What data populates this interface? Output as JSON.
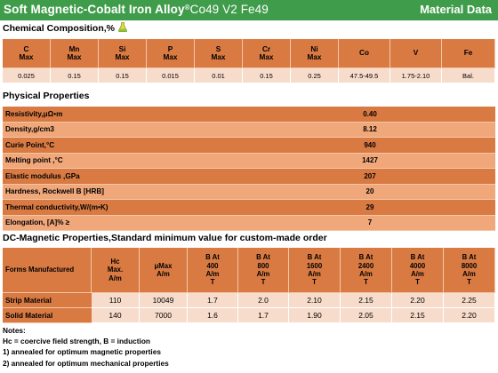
{
  "header": {
    "title": "Soft Magnetic-Cobalt Iron  Alloy",
    "registered": "®",
    "grade": "Co49 V2 Fe49",
    "right_label": "Material Data"
  },
  "chemical": {
    "title": "Chemical Composition,%",
    "columns": [
      {
        "el": "C",
        "sub": "Max",
        "value": "0.025"
      },
      {
        "el": "Mn",
        "sub": "Max",
        "value": "0.15"
      },
      {
        "el": "Si",
        "sub": "Max",
        "value": "0.15"
      },
      {
        "el": "P",
        "sub": "Max",
        "value": "0.015"
      },
      {
        "el": "S",
        "sub": "Max",
        "value": "0.01"
      },
      {
        "el": "Cr",
        "sub": "Max",
        "value": "0.15"
      },
      {
        "el": "Ni",
        "sub": "Max",
        "value": "0.25"
      },
      {
        "el": "Co",
        "sub": "",
        "value": "47.5-49.5"
      },
      {
        "el": "V",
        "sub": "",
        "value": "1.75-2.10"
      },
      {
        "el": "Fe",
        "sub": "",
        "value": "Bal."
      }
    ]
  },
  "physical": {
    "title": "Physical Properties",
    "rows": [
      {
        "label": "Resistivity,μΩ•m",
        "value": "0.40"
      },
      {
        "label": "Density,g/cm3",
        "value": "8.12"
      },
      {
        "label": "Curie Point,°C",
        "value": "940"
      },
      {
        "label": "Melting point ,°C",
        "value": "1427"
      },
      {
        "label": "Elastic modulus ,GPa",
        "value": "207"
      },
      {
        "label": "Hardness, Rockwell B [HRB]",
        "value": "20"
      },
      {
        "label": "Thermal conductivity,W/(m•K)",
        "value": "29"
      },
      {
        "label": "Elongation, [A]% ≥",
        "value": "7"
      }
    ]
  },
  "dc": {
    "title": "DC-Magnetic Properties,Standard minimum value for custom-made order",
    "forms_label": "Forms Manufactured",
    "headers": [
      [
        "Hc",
        "Max.",
        "A/m"
      ],
      [
        "μMax",
        "A/m"
      ],
      [
        "B At",
        "400",
        "A/m",
        "T"
      ],
      [
        "B At",
        "800",
        "A/m",
        "T"
      ],
      [
        "B At",
        "1600",
        "A/m",
        "T"
      ],
      [
        "B At",
        "2400",
        "A/m",
        "T"
      ],
      [
        "B At",
        "4000",
        "A/m",
        "T"
      ],
      [
        "B At",
        "8000",
        "A/m",
        "T"
      ]
    ],
    "rows": [
      {
        "label": "Strip Material",
        "values": [
          "110",
          "10049",
          "1.7",
          "2.0",
          "2.10",
          "2.15",
          "2.20",
          "2.25"
        ]
      },
      {
        "label": "Solid Material",
        "values": [
          "140",
          "7000",
          "1.6",
          "1.7",
          "1.90",
          "2.05",
          "2.15",
          "2.20"
        ]
      }
    ]
  },
  "notes": {
    "heading": "Notes:",
    "lines": [
      "Hc = coercive field strength, B = induction",
      "1) annealed for optimum magnetic properties",
      "2) annealed for optimum mechanical properties"
    ]
  },
  "colors": {
    "banner": "#3f9c4a",
    "header_cell": "#d97a43",
    "header_cell_light": "#f0a77a",
    "value_cell": "#f7dccb"
  },
  "icons": {
    "chem": "flask-icon"
  }
}
